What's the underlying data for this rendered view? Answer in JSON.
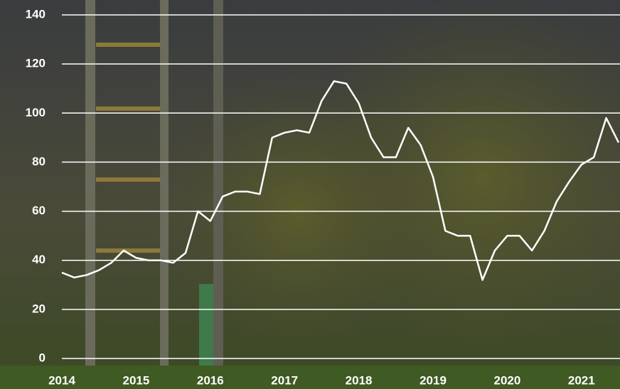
{
  "chart_data": {
    "type": "line",
    "categories": [
      "2014",
      null,
      null,
      null,
      null,
      null,
      "2015",
      null,
      null,
      null,
      null,
      null,
      "2016",
      null,
      null,
      null,
      null,
      null,
      "2017",
      null,
      null,
      null,
      null,
      null,
      "2018",
      null,
      null,
      null,
      null,
      null,
      "2019",
      null,
      null,
      null,
      null,
      null,
      "2020",
      null,
      null,
      null,
      null,
      null,
      "2021",
      null,
      null,
      null
    ],
    "series": [
      {
        "color": "#ffffff",
        "values": [
          35,
          33,
          34,
          36,
          39,
          44,
          41,
          40,
          40,
          39,
          43,
          60,
          56,
          66,
          68,
          68,
          67,
          90,
          92,
          93,
          92,
          105,
          113,
          112,
          104,
          90,
          82,
          82,
          94,
          87,
          74,
          52,
          50,
          50,
          32,
          44,
          50,
          50,
          44,
          52,
          64,
          72,
          79,
          82,
          98,
          88
        ]
      }
    ],
    "ylim": [
      0,
      140
    ],
    "yticks": [
      0,
      20,
      40,
      60,
      80,
      100,
      120,
      140
    ],
    "grid": true
  }
}
